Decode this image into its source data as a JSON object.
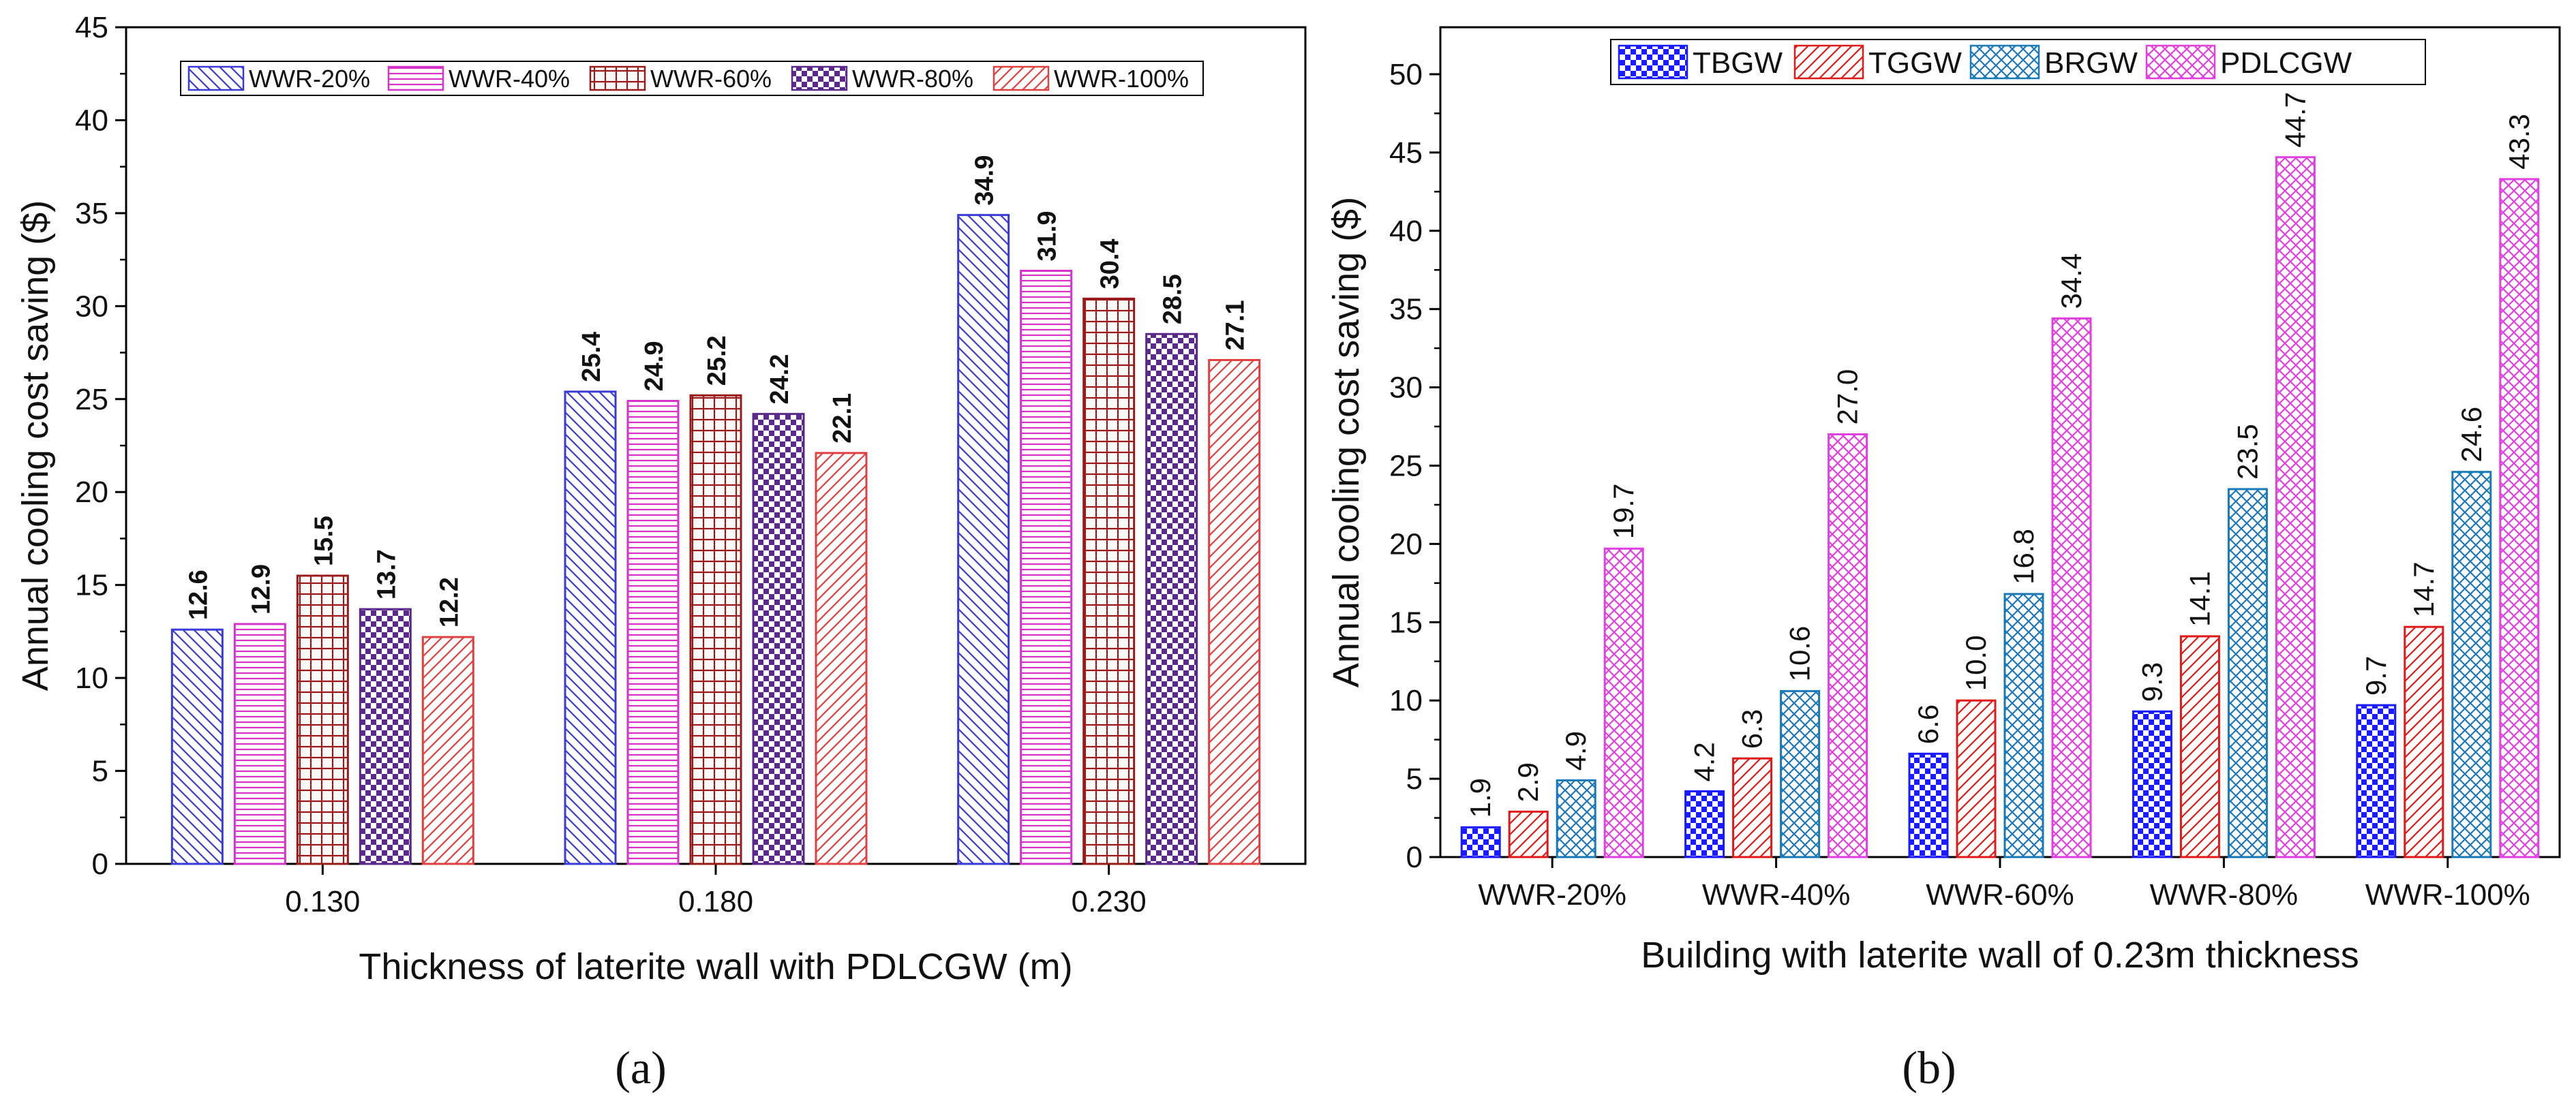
{
  "chart_data": [
    {
      "type": "bar",
      "panel_label": "(a)",
      "xlabel": "Thickness of laterite wall with PDLCGW (m)",
      "ylabel": "Annual cooling cost saving ($)",
      "ylim": [
        0,
        45
      ],
      "yticks": [
        "0",
        "5",
        "10",
        "15",
        "20",
        "25",
        "30",
        "35",
        "40",
        "45"
      ],
      "categories": [
        "0.130",
        "0.180",
        "0.230"
      ],
      "legend_position": "top-center",
      "grid": false,
      "series": [
        {
          "name": "WWR-20%",
          "values": [
            12.6,
            25.4,
            34.9
          ],
          "labels": [
            "12.6",
            "25.4",
            "34.9"
          ],
          "color": "#3a3ad6",
          "pattern": "diag-back"
        },
        {
          "name": "WWR-40%",
          "values": [
            12.9,
            24.9,
            31.9
          ],
          "labels": [
            "12.9",
            "24.9",
            "31.9"
          ],
          "color": "#d633c8",
          "pattern": "horizontal"
        },
        {
          "name": "WWR-60%",
          "values": [
            15.5,
            25.2,
            30.4
          ],
          "labels": [
            "15.5",
            "25.2",
            "30.4"
          ],
          "color": "#9a1a1a",
          "pattern": "grid"
        },
        {
          "name": "WWR-80%",
          "values": [
            13.7,
            24.2,
            28.5
          ],
          "labels": [
            "13.7",
            "24.2",
            "28.5"
          ],
          "color": "#5a2a8a",
          "pattern": "checker"
        },
        {
          "name": "WWR-100%",
          "values": [
            12.2,
            22.1,
            27.1
          ],
          "labels": [
            "12.2",
            "22.1",
            "27.1"
          ],
          "color": "#e04040",
          "pattern": "diag-fwd"
        }
      ]
    },
    {
      "type": "bar",
      "panel_label": "(b)",
      "xlabel": "Building with laterite wall of  0.23m thickness",
      "ylabel": "Annual cooling cost saving ($)",
      "ylim": [
        0,
        53
      ],
      "yticks": [
        "0",
        "5",
        "10",
        "15",
        "20",
        "25",
        "30",
        "35",
        "40",
        "45",
        "50"
      ],
      "categories": [
        "WWR-20%",
        "WWR-40%",
        "WWR-60%",
        "WWR-80%",
        "WWR-100%"
      ],
      "legend_position": "top-center",
      "grid": false,
      "series": [
        {
          "name": "TBGW",
          "values": [
            1.9,
            4.2,
            6.6,
            9.3,
            9.7
          ],
          "labels": [
            "1.9",
            "4.2",
            "6.6",
            "9.3",
            "9.7"
          ],
          "color": "#1a1aff",
          "pattern": "checker"
        },
        {
          "name": "TGGW",
          "values": [
            2.9,
            6.3,
            10.0,
            14.1,
            14.7
          ],
          "labels": [
            "2.9",
            "6.3",
            "10.0",
            "14.1",
            "14.7"
          ],
          "color": "#e01818",
          "pattern": "diag-fwd"
        },
        {
          "name": "BRGW",
          "values": [
            4.9,
            10.6,
            16.8,
            23.5,
            24.6
          ],
          "labels": [
            "4.9",
            "10.6",
            "16.8",
            "23.5",
            "24.6"
          ],
          "color": "#1a7ab8",
          "pattern": "crosshatch"
        },
        {
          "name": "PDLCGW",
          "values": [
            19.7,
            27.0,
            34.4,
            44.7,
            43.3
          ],
          "labels": [
            "19.7",
            "27.0",
            "34.4",
            "44.7",
            "43.3"
          ],
          "color": "#e040e0",
          "pattern": "crosshatch"
        }
      ]
    }
  ]
}
